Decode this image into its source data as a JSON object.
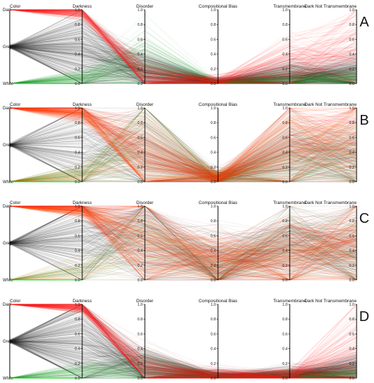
{
  "chart_data": {
    "type": "parallel-coordinates",
    "axes": [
      "Color",
      "Darkness",
      "Disorder",
      "Compositional Bias",
      "Transmembrane",
      "Dark Not Transmembrane"
    ],
    "color_axis_categories": [
      "Dark",
      "Grey",
      "White"
    ],
    "category_colors": {
      "Dark": "#ff1e1e",
      "Grey": "#222222",
      "White": "#1e9e2a"
    },
    "color_axis_line_colors": {
      "Dark": "#ee1111",
      "White": "#22cc22"
    },
    "orange_color": "#ff6a00",
    "numeric_range": [
      0,
      1
    ],
    "tick_labels": [
      "0.0",
      "0.2",
      "0.4",
      "0.6",
      "0.8",
      "1.0"
    ],
    "panels": [
      {
        "label": "A",
        "orange_mode": false,
        "profiles": {
          "Dark": {
            "weight": 0.25,
            "means": [
              0.96,
              0.08,
              0.02,
              0.25,
              0.5
            ],
            "spreads": [
              0.04,
              0.1,
              0.04,
              0.22,
              0.35
            ]
          },
          "Grey": {
            "weight": 0.55,
            "means": [
              0.45,
              0.15,
              0.01,
              0.08,
              0.12
            ],
            "spreads": [
              0.3,
              0.15,
              0.03,
              0.12,
              0.15
            ]
          },
          "White": {
            "weight": 0.2,
            "means": [
              0.06,
              0.3,
              0.01,
              0.05,
              0.08
            ],
            "spreads": [
              0.06,
              0.25,
              0.02,
              0.08,
              0.1
            ]
          }
        }
      },
      {
        "label": "B",
        "orange_mode": true,
        "profiles": {
          "Dark": {
            "weight": 0.42,
            "means": [
              0.94,
              0.3,
              0.05,
              0.55,
              0.6
            ],
            "spreads": [
              0.06,
              0.3,
              0.06,
              0.3,
              0.35
            ]
          },
          "Grey": {
            "weight": 0.35,
            "means": [
              0.5,
              0.4,
              0.05,
              0.35,
              0.3
            ],
            "spreads": [
              0.35,
              0.35,
              0.06,
              0.3,
              0.3
            ]
          },
          "White": {
            "weight": 0.23,
            "means": [
              0.08,
              0.55,
              0.04,
              0.3,
              0.25
            ],
            "spreads": [
              0.08,
              0.35,
              0.05,
              0.3,
              0.3
            ]
          }
        }
      },
      {
        "label": "C",
        "orange_mode": true,
        "profiles": {
          "Dark": {
            "weight": 0.45,
            "means": [
              0.95,
              0.5,
              0.25,
              0.3,
              0.55
            ],
            "spreads": [
              0.05,
              0.35,
              0.2,
              0.3,
              0.35
            ]
          },
          "Grey": {
            "weight": 0.4,
            "means": [
              0.55,
              0.6,
              0.2,
              0.5,
              0.4
            ],
            "spreads": [
              0.35,
              0.35,
              0.2,
              0.25,
              0.3
            ]
          },
          "White": {
            "weight": 0.15,
            "means": [
              0.1,
              0.6,
              0.15,
              0.45,
              0.35
            ],
            "spreads": [
              0.1,
              0.35,
              0.15,
              0.3,
              0.3
            ]
          }
        }
      },
      {
        "label": "D",
        "orange_mode": false,
        "profiles": {
          "Dark": {
            "weight": 0.3,
            "means": [
              0.96,
              0.1,
              0.02,
              0.03,
              0.35
            ],
            "spreads": [
              0.04,
              0.15,
              0.05,
              0.06,
              0.35
            ]
          },
          "Grey": {
            "weight": 0.55,
            "means": [
              0.5,
              0.12,
              0.02,
              0.03,
              0.1
            ],
            "spreads": [
              0.35,
              0.15,
              0.04,
              0.05,
              0.12
            ]
          },
          "White": {
            "weight": 0.15,
            "means": [
              0.07,
              0.12,
              0.01,
              0.02,
              0.05
            ],
            "spreads": [
              0.07,
              0.15,
              0.03,
              0.04,
              0.06
            ]
          }
        }
      }
    ]
  }
}
